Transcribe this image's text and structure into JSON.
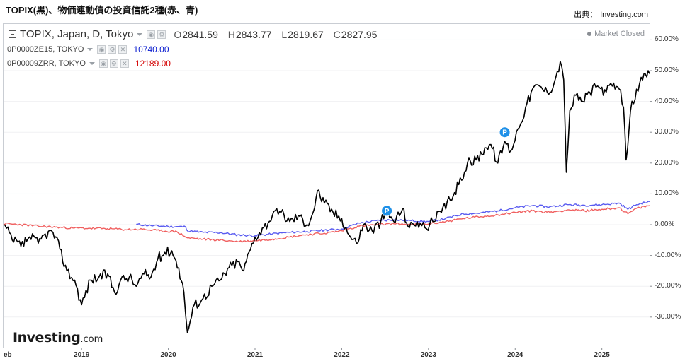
{
  "page": {
    "title": "TOPIX(黒)、物価連動債の投資信託2種(赤、青)",
    "source_label": "出典：",
    "source_value": "Investing.com",
    "logo_main": "Investing",
    "logo_suffix": ".com",
    "market_status": "Market Closed"
  },
  "main_series": {
    "symbol": "TOPIX, Japan, D, Tokyo",
    "ohlc": [
      {
        "k": "O",
        "v": "2841.59"
      },
      {
        "k": "H",
        "v": "2843.77"
      },
      {
        "k": "L",
        "v": "2819.67"
      },
      {
        "k": "C",
        "v": "2827.95"
      }
    ]
  },
  "comparisons": [
    {
      "symbol": "0P0000ZE15, TOKYO",
      "value": "10740.00",
      "color": "#0a1ccf"
    },
    {
      "symbol": "0P00009ZRR, TOKYO",
      "value": "12189.00",
      "color": "#d40000"
    }
  ],
  "colors": {
    "topix": "#000000",
    "blue_line": "#5a5cf0",
    "red_line": "#f06060",
    "marker": "#1e90e8"
  },
  "chart_data": {
    "type": "line",
    "x_start_label": "eb",
    "x_tick_labels": [
      "2019",
      "2020",
      "2021",
      "2022",
      "2023",
      "2024",
      "2025"
    ],
    "y_tick_labels": [
      "60.00%",
      "50.00%",
      "40.00%",
      "30.00%",
      "20.00%",
      "10.00%",
      "0.00%",
      "-10.00%",
      "-20.00%",
      "-30.00%"
    ],
    "y_ticks": [
      60,
      50,
      40,
      30,
      20,
      10,
      0,
      -10,
      -20,
      -30
    ],
    "ylim": [
      -38,
      63
    ],
    "xlim": [
      2018.1,
      2025.55
    ],
    "x_ticks": [
      2019,
      2020,
      2021,
      2022,
      2023,
      2024,
      2025
    ],
    "markers": [
      {
        "label": "P",
        "x": 2022.52,
        "y": 4.5
      },
      {
        "label": "P",
        "x": 2023.88,
        "y": 30.0
      }
    ],
    "series": [
      {
        "name": "0P0000ZE15, TOKYO",
        "key": "blue",
        "points": [
          [
            2019.63,
            0.1
          ],
          [
            2019.8,
            -0.3
          ],
          [
            2020.0,
            -0.6
          ],
          [
            2020.2,
            -0.7
          ],
          [
            2020.22,
            -2.0
          ],
          [
            2020.4,
            -2.5
          ],
          [
            2020.6,
            -2.6
          ],
          [
            2020.8,
            -3.3
          ],
          [
            2021.0,
            -3.6
          ],
          [
            2021.2,
            -3.0
          ],
          [
            2021.4,
            -2.5
          ],
          [
            2021.6,
            -2.2
          ],
          [
            2021.8,
            -1.8
          ],
          [
            2022.0,
            -1.4
          ],
          [
            2022.2,
            0.5
          ],
          [
            2022.4,
            1.3
          ],
          [
            2022.6,
            1.6
          ],
          [
            2022.8,
            1.3
          ],
          [
            2023.0,
            1.0
          ],
          [
            2023.2,
            2.0
          ],
          [
            2023.4,
            3.5
          ],
          [
            2023.6,
            3.8
          ],
          [
            2023.8,
            4.5
          ],
          [
            2024.0,
            5.5
          ],
          [
            2024.2,
            6.2
          ],
          [
            2024.4,
            5.8
          ],
          [
            2024.6,
            6.5
          ],
          [
            2024.8,
            6.3
          ],
          [
            2025.0,
            6.5
          ],
          [
            2025.2,
            7.0
          ],
          [
            2025.3,
            5.0
          ],
          [
            2025.4,
            6.5
          ],
          [
            2025.55,
            7.5
          ]
        ]
      },
      {
        "name": "0P00009ZRR, TOKYO",
        "key": "red",
        "points": [
          [
            2018.1,
            0.3
          ],
          [
            2018.3,
            0.0
          ],
          [
            2018.5,
            -0.5
          ],
          [
            2018.7,
            -0.8
          ],
          [
            2018.9,
            -1.1
          ],
          [
            2019.1,
            -1.2
          ],
          [
            2019.3,
            -1.3
          ],
          [
            2019.5,
            -1.6
          ],
          [
            2019.7,
            -1.5
          ],
          [
            2019.9,
            -2.0
          ],
          [
            2020.1,
            -2.3
          ],
          [
            2020.22,
            -4.3
          ],
          [
            2020.4,
            -4.7
          ],
          [
            2020.6,
            -5.0
          ],
          [
            2020.8,
            -5.5
          ],
          [
            2021.0,
            -5.2
          ],
          [
            2021.2,
            -4.7
          ],
          [
            2021.4,
            -4.0
          ],
          [
            2021.6,
            -3.2
          ],
          [
            2021.8,
            -2.8
          ],
          [
            2022.0,
            -2.0
          ],
          [
            2022.2,
            -0.5
          ],
          [
            2022.4,
            0.0
          ],
          [
            2022.6,
            0.3
          ],
          [
            2022.8,
            0.0
          ],
          [
            2023.0,
            0.2
          ],
          [
            2023.2,
            1.0
          ],
          [
            2023.4,
            2.0
          ],
          [
            2023.6,
            2.6
          ],
          [
            2023.8,
            3.2
          ],
          [
            2024.0,
            4.0
          ],
          [
            2024.2,
            4.5
          ],
          [
            2024.4,
            4.0
          ],
          [
            2024.6,
            4.8
          ],
          [
            2024.8,
            4.5
          ],
          [
            2025.0,
            5.0
          ],
          [
            2025.2,
            5.5
          ],
          [
            2025.3,
            3.5
          ],
          [
            2025.4,
            5.3
          ],
          [
            2025.55,
            6.2
          ]
        ]
      },
      {
        "name": "TOPIX, Japan, D, Tokyo",
        "key": "topix",
        "points": [
          [
            2018.1,
            0.0
          ],
          [
            2018.2,
            -5.0
          ],
          [
            2018.3,
            -7.0
          ],
          [
            2018.4,
            -4.0
          ],
          [
            2018.5,
            -6.0
          ],
          [
            2018.58,
            -3.0
          ],
          [
            2018.67,
            -2.5
          ],
          [
            2018.75,
            -8.0
          ],
          [
            2018.83,
            -15.0
          ],
          [
            2018.92,
            -18.0
          ],
          [
            2019.0,
            -26.0
          ],
          [
            2019.1,
            -18.0
          ],
          [
            2019.2,
            -17.0
          ],
          [
            2019.3,
            -16.0
          ],
          [
            2019.38,
            -22.0
          ],
          [
            2019.45,
            -18.0
          ],
          [
            2019.55,
            -17.0
          ],
          [
            2019.63,
            -20.0
          ],
          [
            2019.72,
            -16.0
          ],
          [
            2019.8,
            -17.0
          ],
          [
            2019.88,
            -11.0
          ],
          [
            2019.96,
            -9.0
          ],
          [
            2020.04,
            -8.5
          ],
          [
            2020.12,
            -14.0
          ],
          [
            2020.18,
            -22.0
          ],
          [
            2020.22,
            -35.0
          ],
          [
            2020.3,
            -26.0
          ],
          [
            2020.4,
            -24.0
          ],
          [
            2020.5,
            -20.0
          ],
          [
            2020.6,
            -18.0
          ],
          [
            2020.7,
            -14.0
          ],
          [
            2020.8,
            -12.0
          ],
          [
            2020.87,
            -15.0
          ],
          [
            2020.93,
            -9.0
          ],
          [
            2021.0,
            -4.0
          ],
          [
            2021.1,
            -1.0
          ],
          [
            2021.2,
            3.0
          ],
          [
            2021.3,
            4.0
          ],
          [
            2021.4,
            1.0
          ],
          [
            2021.5,
            3.0
          ],
          [
            2021.6,
            0.0
          ],
          [
            2021.67,
            4.0
          ],
          [
            2021.72,
            11.0
          ],
          [
            2021.8,
            7.0
          ],
          [
            2021.9,
            4.0
          ],
          [
            2022.0,
            2.0
          ],
          [
            2022.1,
            -4.0
          ],
          [
            2022.17,
            -6.0
          ],
          [
            2022.25,
            0.0
          ],
          [
            2022.35,
            -2.0
          ],
          [
            2022.45,
            1.0
          ],
          [
            2022.52,
            4.0
          ],
          [
            2022.6,
            1.0
          ],
          [
            2022.7,
            5.0
          ],
          [
            2022.78,
            -1.0
          ],
          [
            2022.87,
            1.0
          ],
          [
            2022.96,
            -1.0
          ],
          [
            2023.05,
            1.0
          ],
          [
            2023.15,
            4.0
          ],
          [
            2023.25,
            8.0
          ],
          [
            2023.35,
            13.0
          ],
          [
            2023.45,
            20.0
          ],
          [
            2023.55,
            21.0
          ],
          [
            2023.65,
            25.0
          ],
          [
            2023.72,
            26.0
          ],
          [
            2023.8,
            20.0
          ],
          [
            2023.88,
            27.0
          ],
          [
            2023.95,
            24.0
          ],
          [
            2024.03,
            31.0
          ],
          [
            2024.12,
            38.0
          ],
          [
            2024.2,
            44.0
          ],
          [
            2024.28,
            45.0
          ],
          [
            2024.37,
            43.0
          ],
          [
            2024.45,
            46.0
          ],
          [
            2024.52,
            53.0
          ],
          [
            2024.56,
            47.0
          ],
          [
            2024.59,
            17.0
          ],
          [
            2024.63,
            37.0
          ],
          [
            2024.7,
            42.0
          ],
          [
            2024.78,
            40.0
          ],
          [
            2024.86,
            43.0
          ],
          [
            2024.95,
            45.0
          ],
          [
            2025.05,
            43.0
          ],
          [
            2025.12,
            45.0
          ],
          [
            2025.2,
            44.0
          ],
          [
            2025.25,
            38.0
          ],
          [
            2025.28,
            21.0
          ],
          [
            2025.33,
            37.0
          ],
          [
            2025.4,
            44.0
          ],
          [
            2025.47,
            47.0
          ],
          [
            2025.55,
            49.0
          ]
        ]
      }
    ]
  }
}
